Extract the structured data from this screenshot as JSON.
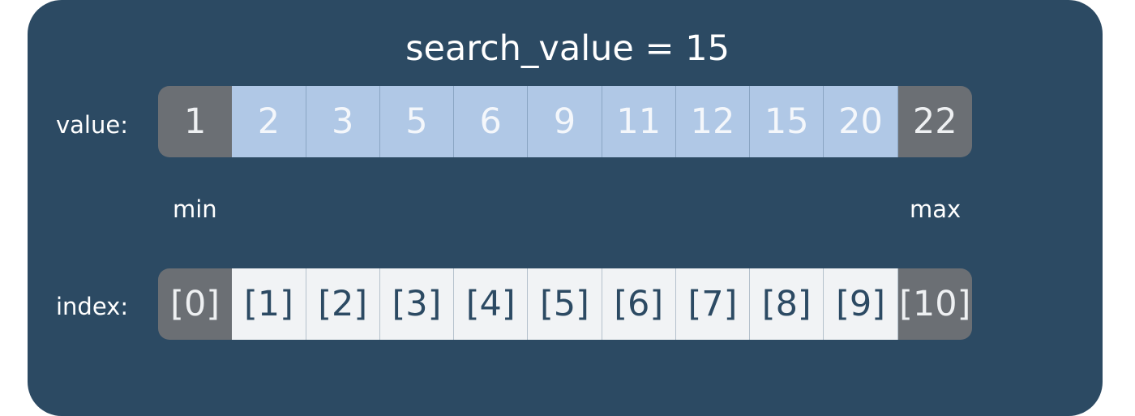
{
  "title": "search_value = 15",
  "value_label": "value:",
  "index_label": "index:",
  "values": [
    "1",
    "2",
    "3",
    "5",
    "6",
    "9",
    "11",
    "12",
    "15",
    "20",
    "22"
  ],
  "indices": [
    "[0]",
    "[1]",
    "[2]",
    "[3]",
    "[4]",
    "[5]",
    "[6]",
    "[7]",
    "[8]",
    "[9]",
    "[10]"
  ],
  "min_label": "min",
  "max_label": "max",
  "colors": {
    "panel": "#2c4a63",
    "active_value_cell": "#b0c8e6",
    "index_cell": "#f1f3f5",
    "bound_cell": "#6b6f74"
  }
}
